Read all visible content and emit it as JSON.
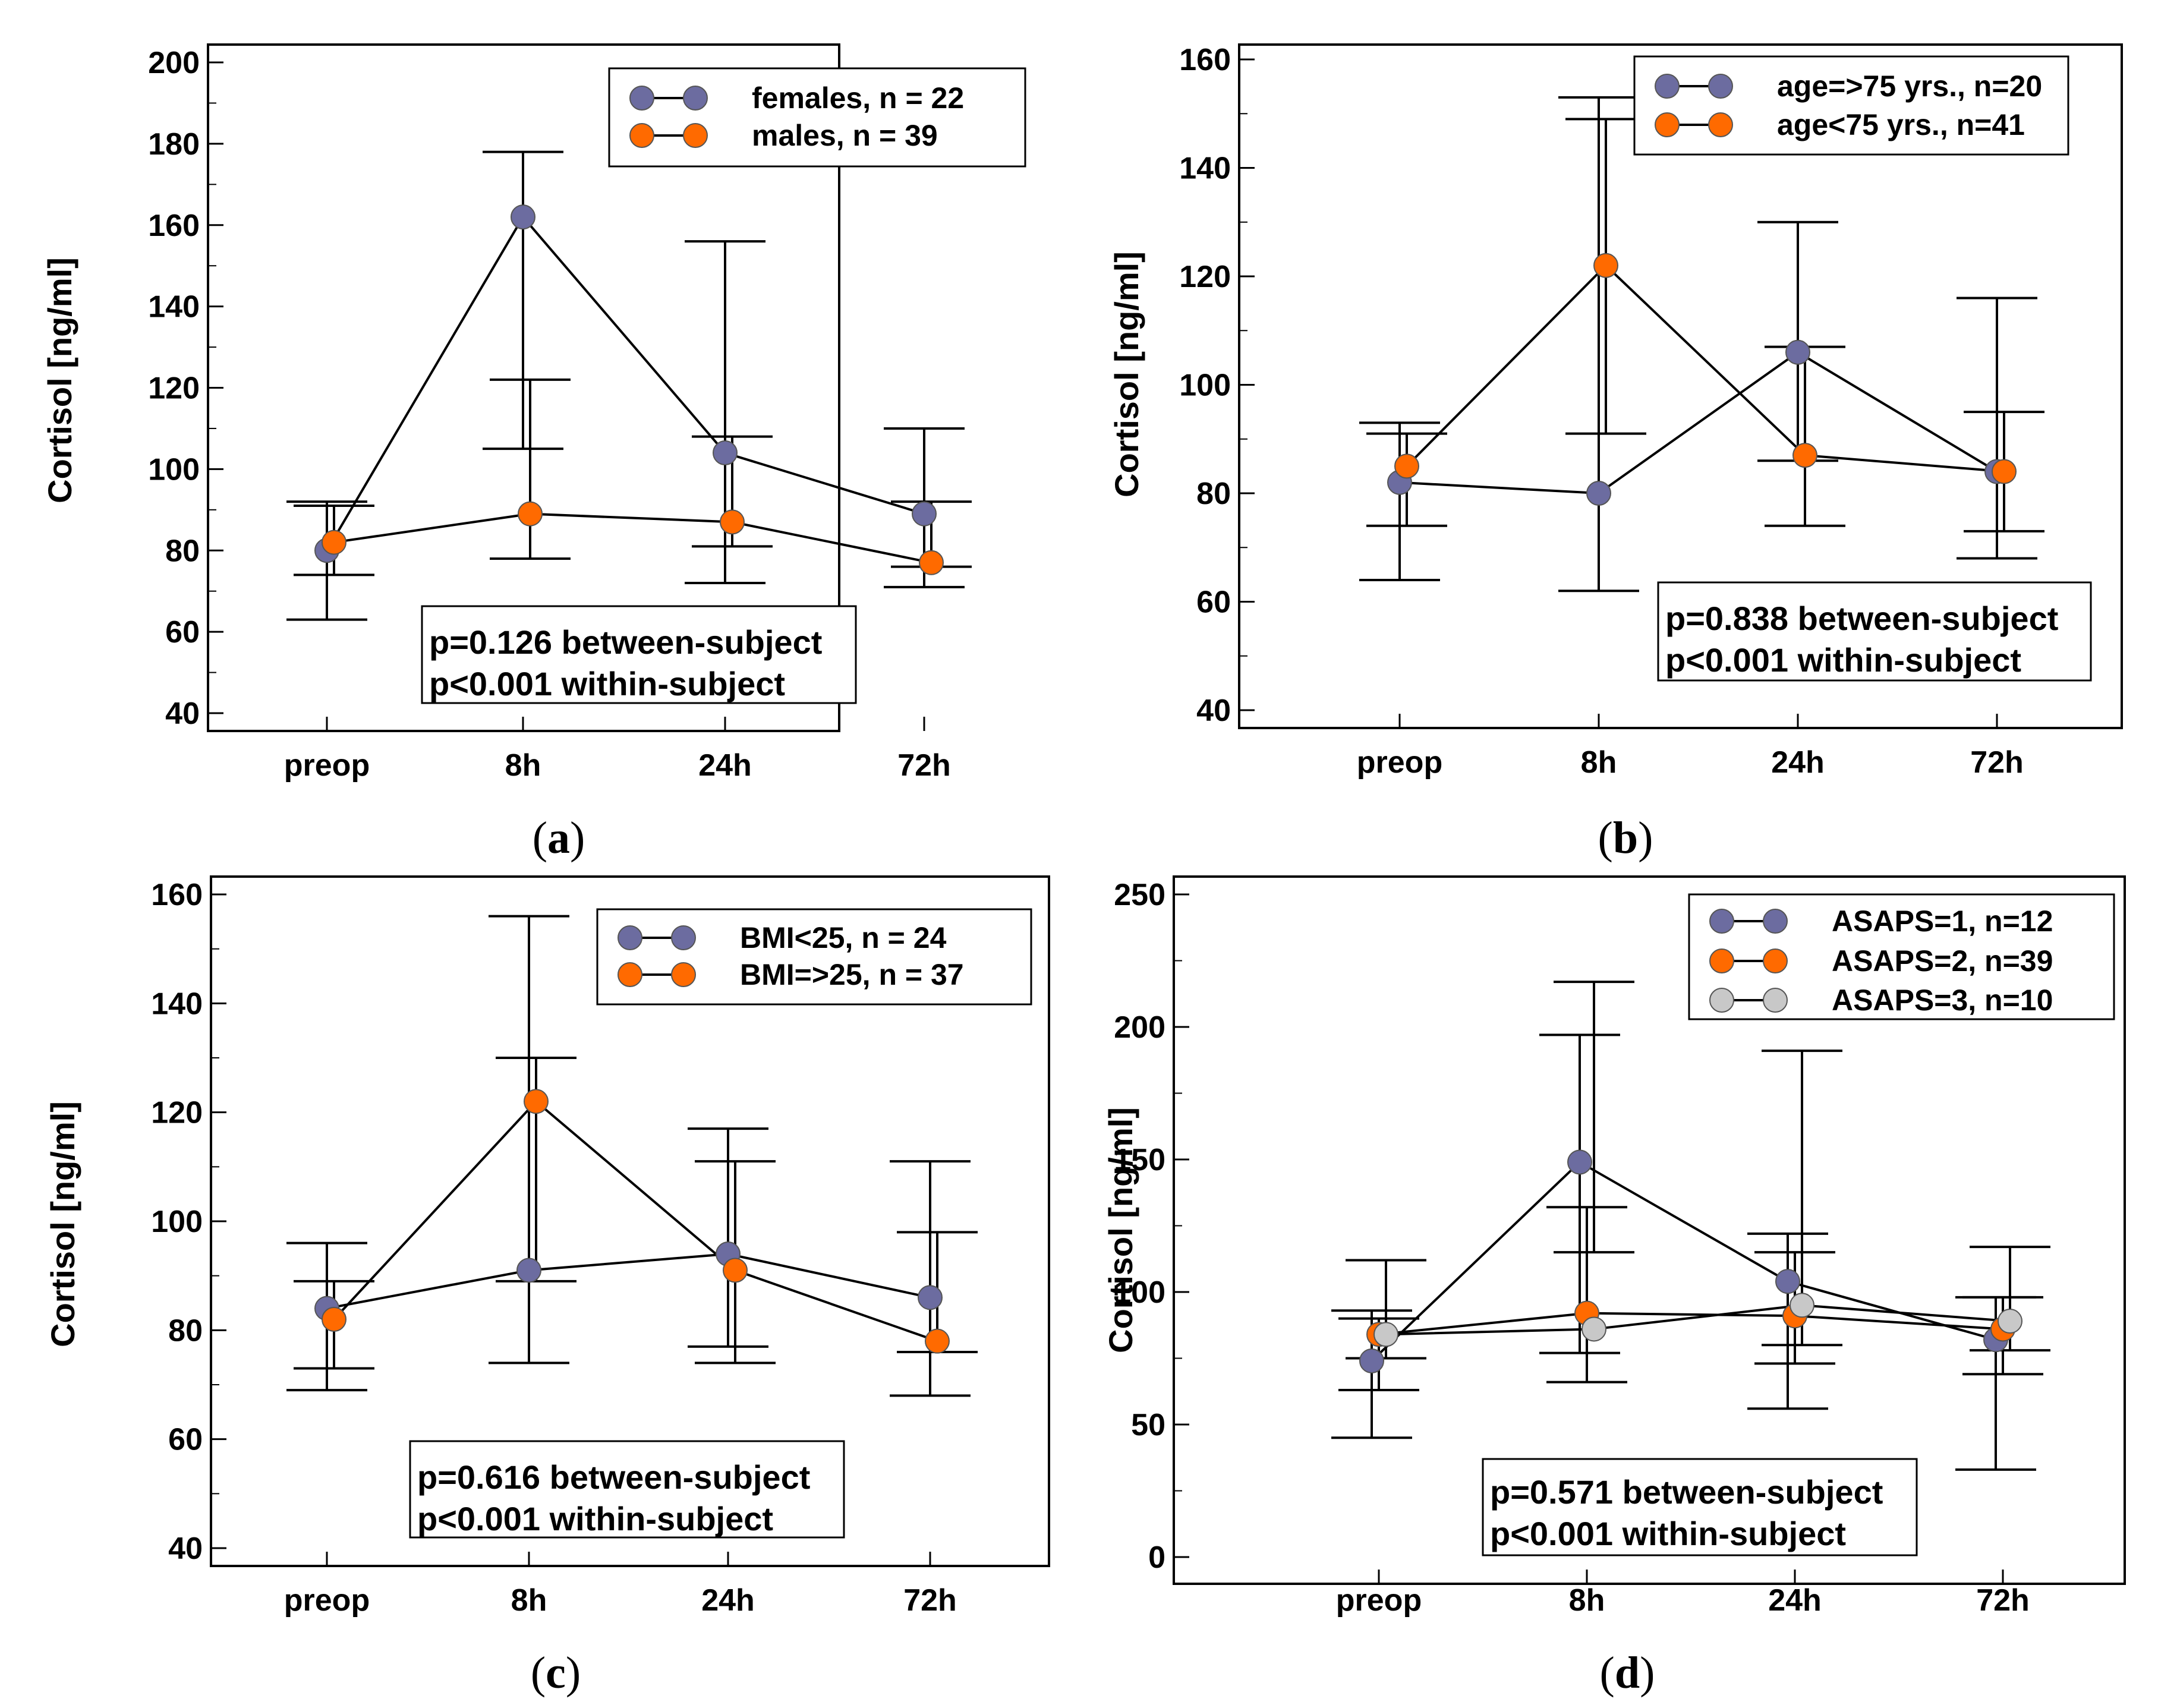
{
  "colors": {
    "series_1": "#6c6ca0",
    "series_2": "#ff6a00",
    "series_3": "#c8c8c8"
  },
  "chart_data": [
    {
      "id": "a",
      "type": "line",
      "caption_label": "a",
      "ylabel": "Cortisol [ng/ml]",
      "categories": [
        "preop",
        "8h",
        "24h",
        "72h"
      ],
      "ylim": [
        40,
        200
      ],
      "yticks": [
        40,
        60,
        80,
        100,
        120,
        140,
        160,
        180,
        200
      ],
      "series": [
        {
          "name": "females, n = 22",
          "color_key": "series_1",
          "values": [
            80,
            162,
            104,
            89
          ],
          "err_low": [
            63,
            105,
            72,
            71
          ],
          "err_high": [
            92,
            178,
            156,
            110
          ]
        },
        {
          "name": "males, n = 39",
          "color_key": "series_2",
          "values": [
            82,
            89,
            87,
            77
          ],
          "err_low": [
            74,
            78,
            81,
            76
          ],
          "err_high": [
            91,
            122,
            108,
            92
          ]
        }
      ],
      "stats": [
        "p=0.126 between-subject",
        "p<0.001 within-subject"
      ]
    },
    {
      "id": "b",
      "type": "line",
      "caption_label": "b",
      "ylabel": "Cortisol [ng/ml]",
      "categories": [
        "preop",
        "8h",
        "24h",
        "72h"
      ],
      "ylim": [
        40,
        160
      ],
      "yticks": [
        40,
        60,
        80,
        100,
        120,
        140,
        160
      ],
      "series": [
        {
          "name": "age=>75 yrs., n=20",
          "color_key": "series_1",
          "values": [
            82,
            80,
            106,
            84
          ],
          "err_low": [
            64,
            62,
            86,
            68
          ],
          "err_high": [
            93,
            153,
            130,
            116
          ]
        },
        {
          "name": "age<75 yrs., n=41",
          "color_key": "series_2",
          "values": [
            85,
            122,
            87,
            84
          ],
          "err_low": [
            74,
            91,
            74,
            73
          ],
          "err_high": [
            91,
            149,
            107,
            95
          ]
        }
      ],
      "stats": [
        "p=0.838 between-subject",
        "p<0.001 within-subject"
      ]
    },
    {
      "id": "c",
      "type": "line",
      "caption_label": "c",
      "ylabel": "Cortisol [ng/ml]",
      "categories": [
        "preop",
        "8h",
        "24h",
        "72h"
      ],
      "ylim": [
        40,
        160
      ],
      "yticks": [
        40,
        60,
        80,
        100,
        120,
        140,
        160
      ],
      "series": [
        {
          "name": "BMI<25, n = 24",
          "color_key": "series_1",
          "values": [
            84,
            91,
            94,
            86
          ],
          "err_low": [
            69,
            74,
            77,
            68
          ],
          "err_high": [
            96,
            156,
            117,
            111
          ]
        },
        {
          "name": "BMI=>25, n = 37",
          "color_key": "series_2",
          "values": [
            82,
            122,
            91,
            78
          ],
          "err_low": [
            73,
            89,
            74,
            76
          ],
          "err_high": [
            89,
            130,
            111,
            98
          ]
        }
      ],
      "stats": [
        "p=0.616 between-subject",
        "p<0.001 within-subject"
      ]
    },
    {
      "id": "d",
      "type": "line",
      "caption_label": "d",
      "ylabel": "Cortisol [ng/ml]",
      "categories": [
        "preop",
        "8h",
        "24h",
        "72h"
      ],
      "ylim": [
        0,
        250
      ],
      "yticks": [
        0,
        50,
        100,
        150,
        200,
        250
      ],
      "series": [
        {
          "name": "ASAPS=1, n=12",
          "color_key": "series_1",
          "values": [
            74,
            149,
            104,
            82
          ],
          "err_low": [
            45,
            77,
            56,
            33
          ],
          "err_high": [
            93,
            197,
            122,
            98
          ]
        },
        {
          "name": "ASAPS=2, n=39",
          "color_key": "series_2",
          "values": [
            84,
            92,
            91,
            86
          ],
          "err_low": [
            63,
            66,
            73,
            69
          ],
          "err_high": [
            90,
            132,
            115,
            98
          ]
        },
        {
          "name": "ASAPS=3, n=10",
          "color_key": "series_3",
          "values": [
            84,
            86,
            95,
            89
          ],
          "err_low": [
            75,
            115,
            80,
            78
          ],
          "err_high": [
            112,
            217,
            191,
            117
          ]
        }
      ],
      "stats": [
        "p=0.571 between-subject",
        "p<0.001 within-subject"
      ]
    }
  ]
}
